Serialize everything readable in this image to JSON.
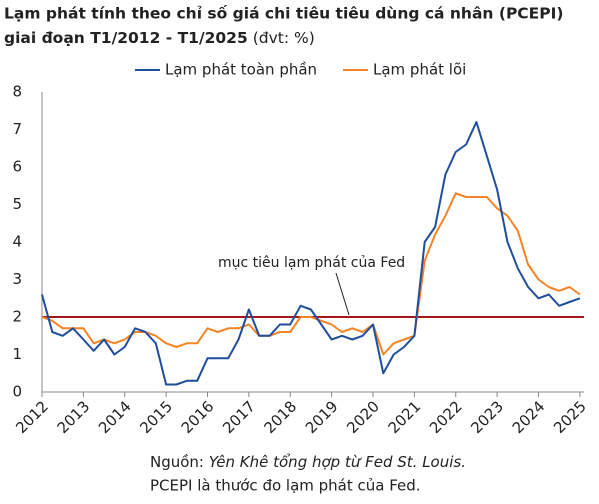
{
  "chart_data": {
    "type": "line",
    "title": [
      "Lạm phát tính theo chỉ số giá chi tiêu tiêu dùng cá nhân (PCEPI)",
      "giai đoạn T1/2012 - T1/2025"
    ],
    "unit": "(đvt: %)",
    "x": [
      2012,
      2012.25,
      2012.5,
      2012.75,
      2013,
      2013.25,
      2013.5,
      2013.75,
      2014,
      2014.25,
      2014.5,
      2014.75,
      2015,
      2015.25,
      2015.5,
      2015.75,
      2016,
      2016.25,
      2016.5,
      2016.75,
      2017,
      2017.25,
      2017.5,
      2017.75,
      2018,
      2018.25,
      2018.5,
      2018.75,
      2019,
      2019.25,
      2019.5,
      2019.75,
      2020,
      2020.25,
      2020.5,
      2020.75,
      2021,
      2021.25,
      2021.5,
      2021.75,
      2022,
      2022.25,
      2022.5,
      2022.75,
      2023,
      2023.25,
      2023.5,
      2023.75,
      2024,
      2024.25,
      2024.5,
      2024.75,
      2025
    ],
    "series": [
      {
        "name": "Lạm phát toàn phần",
        "color": "#1f4e9c",
        "values": [
          2.6,
          1.6,
          1.5,
          1.7,
          1.4,
          1.1,
          1.4,
          1.0,
          1.2,
          1.7,
          1.6,
          1.3,
          0.2,
          0.2,
          0.3,
          0.3,
          0.9,
          0.9,
          0.9,
          1.4,
          2.2,
          1.5,
          1.5,
          1.8,
          1.8,
          2.3,
          2.2,
          1.8,
          1.4,
          1.5,
          1.4,
          1.5,
          1.8,
          0.5,
          1.0,
          1.2,
          1.5,
          4.0,
          4.4,
          5.8,
          6.4,
          6.6,
          7.2,
          6.3,
          5.4,
          4.0,
          3.3,
          2.8,
          2.5,
          2.6,
          2.3,
          2.4,
          2.5
        ]
      },
      {
        "name": "Lạm phát lõi",
        "color": "#f58426",
        "values": [
          2.0,
          1.9,
          1.7,
          1.7,
          1.7,
          1.3,
          1.4,
          1.3,
          1.4,
          1.6,
          1.6,
          1.5,
          1.3,
          1.2,
          1.3,
          1.3,
          1.7,
          1.6,
          1.7,
          1.7,
          1.8,
          1.5,
          1.5,
          1.6,
          1.6,
          2.0,
          2.0,
          1.9,
          1.8,
          1.6,
          1.7,
          1.6,
          1.8,
          1.0,
          1.3,
          1.4,
          1.5,
          3.5,
          4.2,
          4.7,
          5.3,
          5.2,
          5.2,
          5.2,
          4.9,
          4.7,
          4.3,
          3.4,
          3.0,
          2.8,
          2.7,
          2.8,
          2.6
        ]
      }
    ],
    "target": {
      "value": 2,
      "label": "mục tiêu lạm phát của Fed",
      "color": "#a3161a"
    },
    "xlim": [
      2012,
      2025.1
    ],
    "xticks": [
      2012,
      2013,
      2014,
      2015,
      2016,
      2017,
      2018,
      2019,
      2020,
      2021,
      2022,
      2023,
      2024,
      2025
    ],
    "ylim": [
      0,
      8
    ],
    "yticks": [
      0,
      1,
      2,
      3,
      4,
      5,
      6,
      7,
      8
    ],
    "source_prefix": "Nguồn: ",
    "source": "Yên Khê tổng hợp từ Fed St. Louis.",
    "note": "PCEPI là thước đo lạm phát của Fed."
  }
}
